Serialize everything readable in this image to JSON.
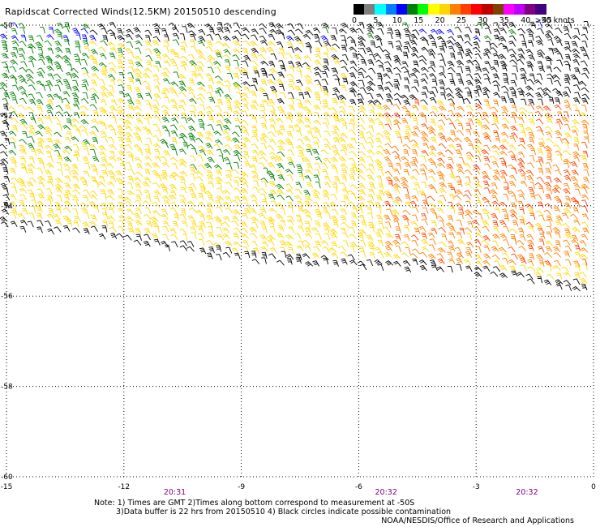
{
  "title": "Rapidscat Corrected Winds(12.5KM) 20150510 descending",
  "legend": {
    "unit": ">50 knots",
    "labels": [
      "0",
      "5",
      "10",
      "15",
      "20",
      "25",
      "30",
      "35",
      "40",
      "45"
    ],
    "colors": [
      "#000000",
      "#7f7f7f",
      "#00ffff",
      "#0080ff",
      "#0000ff",
      "#008000",
      "#00ff00",
      "#ffff00",
      "#ffd700",
      "#ff8000",
      "#ff4000",
      "#ff0000",
      "#c00000",
      "#804000",
      "#ff00ff",
      "#c000ff",
      "#800080",
      "#400080"
    ]
  },
  "axes": {
    "x_ticks": [
      "-15",
      "-12",
      "-9",
      "-6",
      "-3",
      "0"
    ],
    "y_ticks": [
      "-50",
      "-52",
      "-54",
      "-56",
      "-58",
      "-60"
    ],
    "x_range": [
      -15,
      0
    ],
    "y_range": [
      -60,
      -50
    ]
  },
  "times": [
    "20:31",
    "20:32",
    "20:32"
  ],
  "notes": {
    "line1": "Note: 1) Times are GMT 2)Times along bottom correspond to measurement at -50S",
    "line2": "3)Data buffer is 22 hrs from 20150510 4) Black circles indicate possible contamination"
  },
  "credit": "NOAA/NESDIS/Office of Research and Applications",
  "wind_field": {
    "description_colors": {
      "low": "#000000",
      "green": "#008000",
      "yellow": "#ffd700",
      "orange": "#ff8000",
      "red": "#ff4000",
      "blue": "#0000ff"
    }
  }
}
